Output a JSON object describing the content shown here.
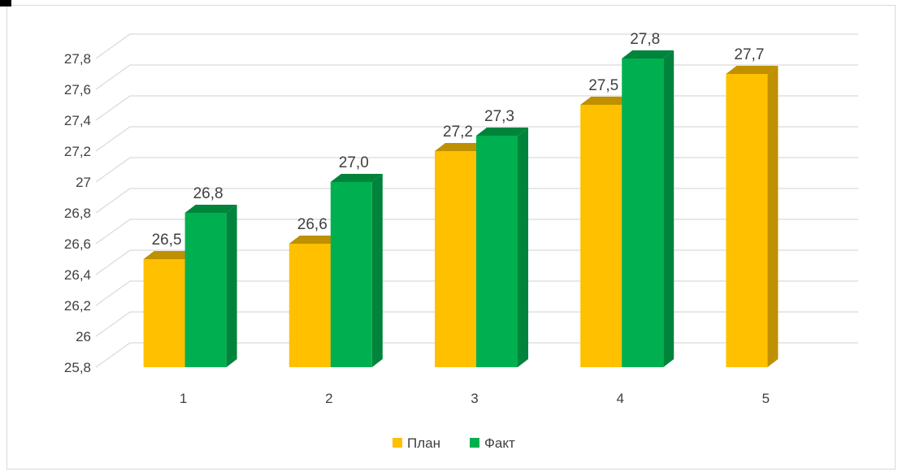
{
  "chart_data": {
    "type": "bar",
    "title": "",
    "xlabel": "",
    "ylabel": "",
    "categories": [
      "1",
      "2",
      "3",
      "4",
      "5"
    ],
    "series": [
      {
        "name": "План",
        "values": [
          26.5,
          26.6,
          27.2,
          27.5,
          27.7
        ],
        "labels": [
          "26,5",
          "26,6",
          "27,2",
          "27,5",
          "27,7"
        ],
        "color": "#FFC000",
        "side_color": "#BF9000",
        "top_color": "#BF9000"
      },
      {
        "name": "Факт",
        "values": [
          26.8,
          27.0,
          27.3,
          27.8,
          null
        ],
        "labels": [
          "26,8",
          "27,0",
          "27,3",
          "27,8",
          ""
        ],
        "color": "#00B050",
        "side_color": "#00843C",
        "top_color": "#00843C"
      }
    ],
    "ylim": [
      25.8,
      27.8
    ],
    "yticks": [
      25.8,
      26,
      26.2,
      26.4,
      26.6,
      26.8,
      27,
      27.2,
      27.4,
      27.6,
      27.8
    ],
    "ytick_labels": [
      "25,8",
      "26",
      "26,2",
      "26,4",
      "26,6",
      "26,8",
      "27",
      "27,2",
      "27,4",
      "27,6",
      "27,8"
    ],
    "grid": true,
    "legend_position": "bottom",
    "gridline_color": "#d9d9d9"
  }
}
